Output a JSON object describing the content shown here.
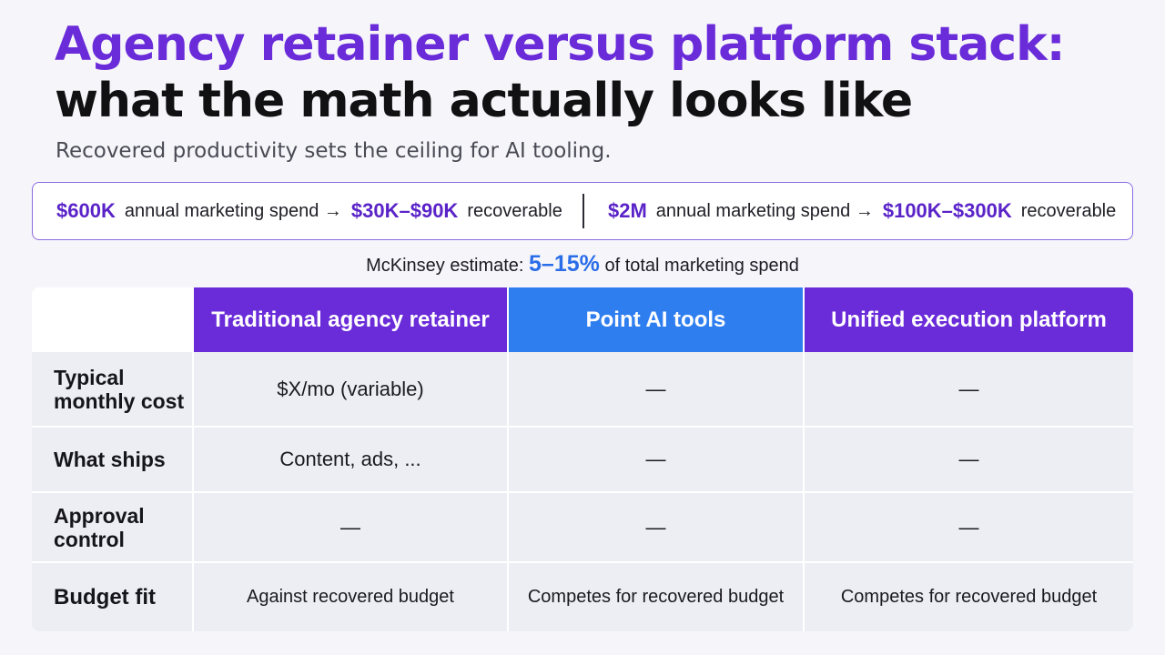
{
  "title": {
    "line1": "Agency retainer versus platform stack:",
    "line2": "what the math actually looks like"
  },
  "subtitle": "Recovered productivity sets the ceiling for AI tooling.",
  "banner": {
    "left": {
      "spend": "$600K",
      "spend_label": "annual marketing spend →",
      "range": "$30K–$90K",
      "range_label": "recoverable"
    },
    "right": {
      "spend": "$2M",
      "spend_label": "annual marketing spend →",
      "range": "$100K–$300K",
      "range_label": "recoverable"
    }
  },
  "note": {
    "prefix": "McKinsey estimate:",
    "percent": "5–15%",
    "suffix": "of total marketing spend"
  },
  "table": {
    "columns": [
      "",
      "Traditional agency retainer",
      "Point AI tools",
      "Unified execution platform"
    ],
    "rows": [
      {
        "label": "Typical monthly cost",
        "values": [
          "$X/mo (variable)",
          "—",
          "—"
        ]
      },
      {
        "label": "What ships",
        "values": [
          "Content, ads, ...",
          "—",
          "—"
        ]
      },
      {
        "label": "Approval control",
        "values": [
          "—",
          "—",
          "—"
        ]
      },
      {
        "label": "Budget fit",
        "values": [
          "Against recovered budget",
          "Competes for recovered budget",
          "Competes for recovered budget"
        ]
      }
    ]
  },
  "colors": {
    "purple": "#6a2bd9",
    "blue": "#2f7ef0",
    "highlight": "#5a23c8",
    "percent": "#2b6de8"
  }
}
